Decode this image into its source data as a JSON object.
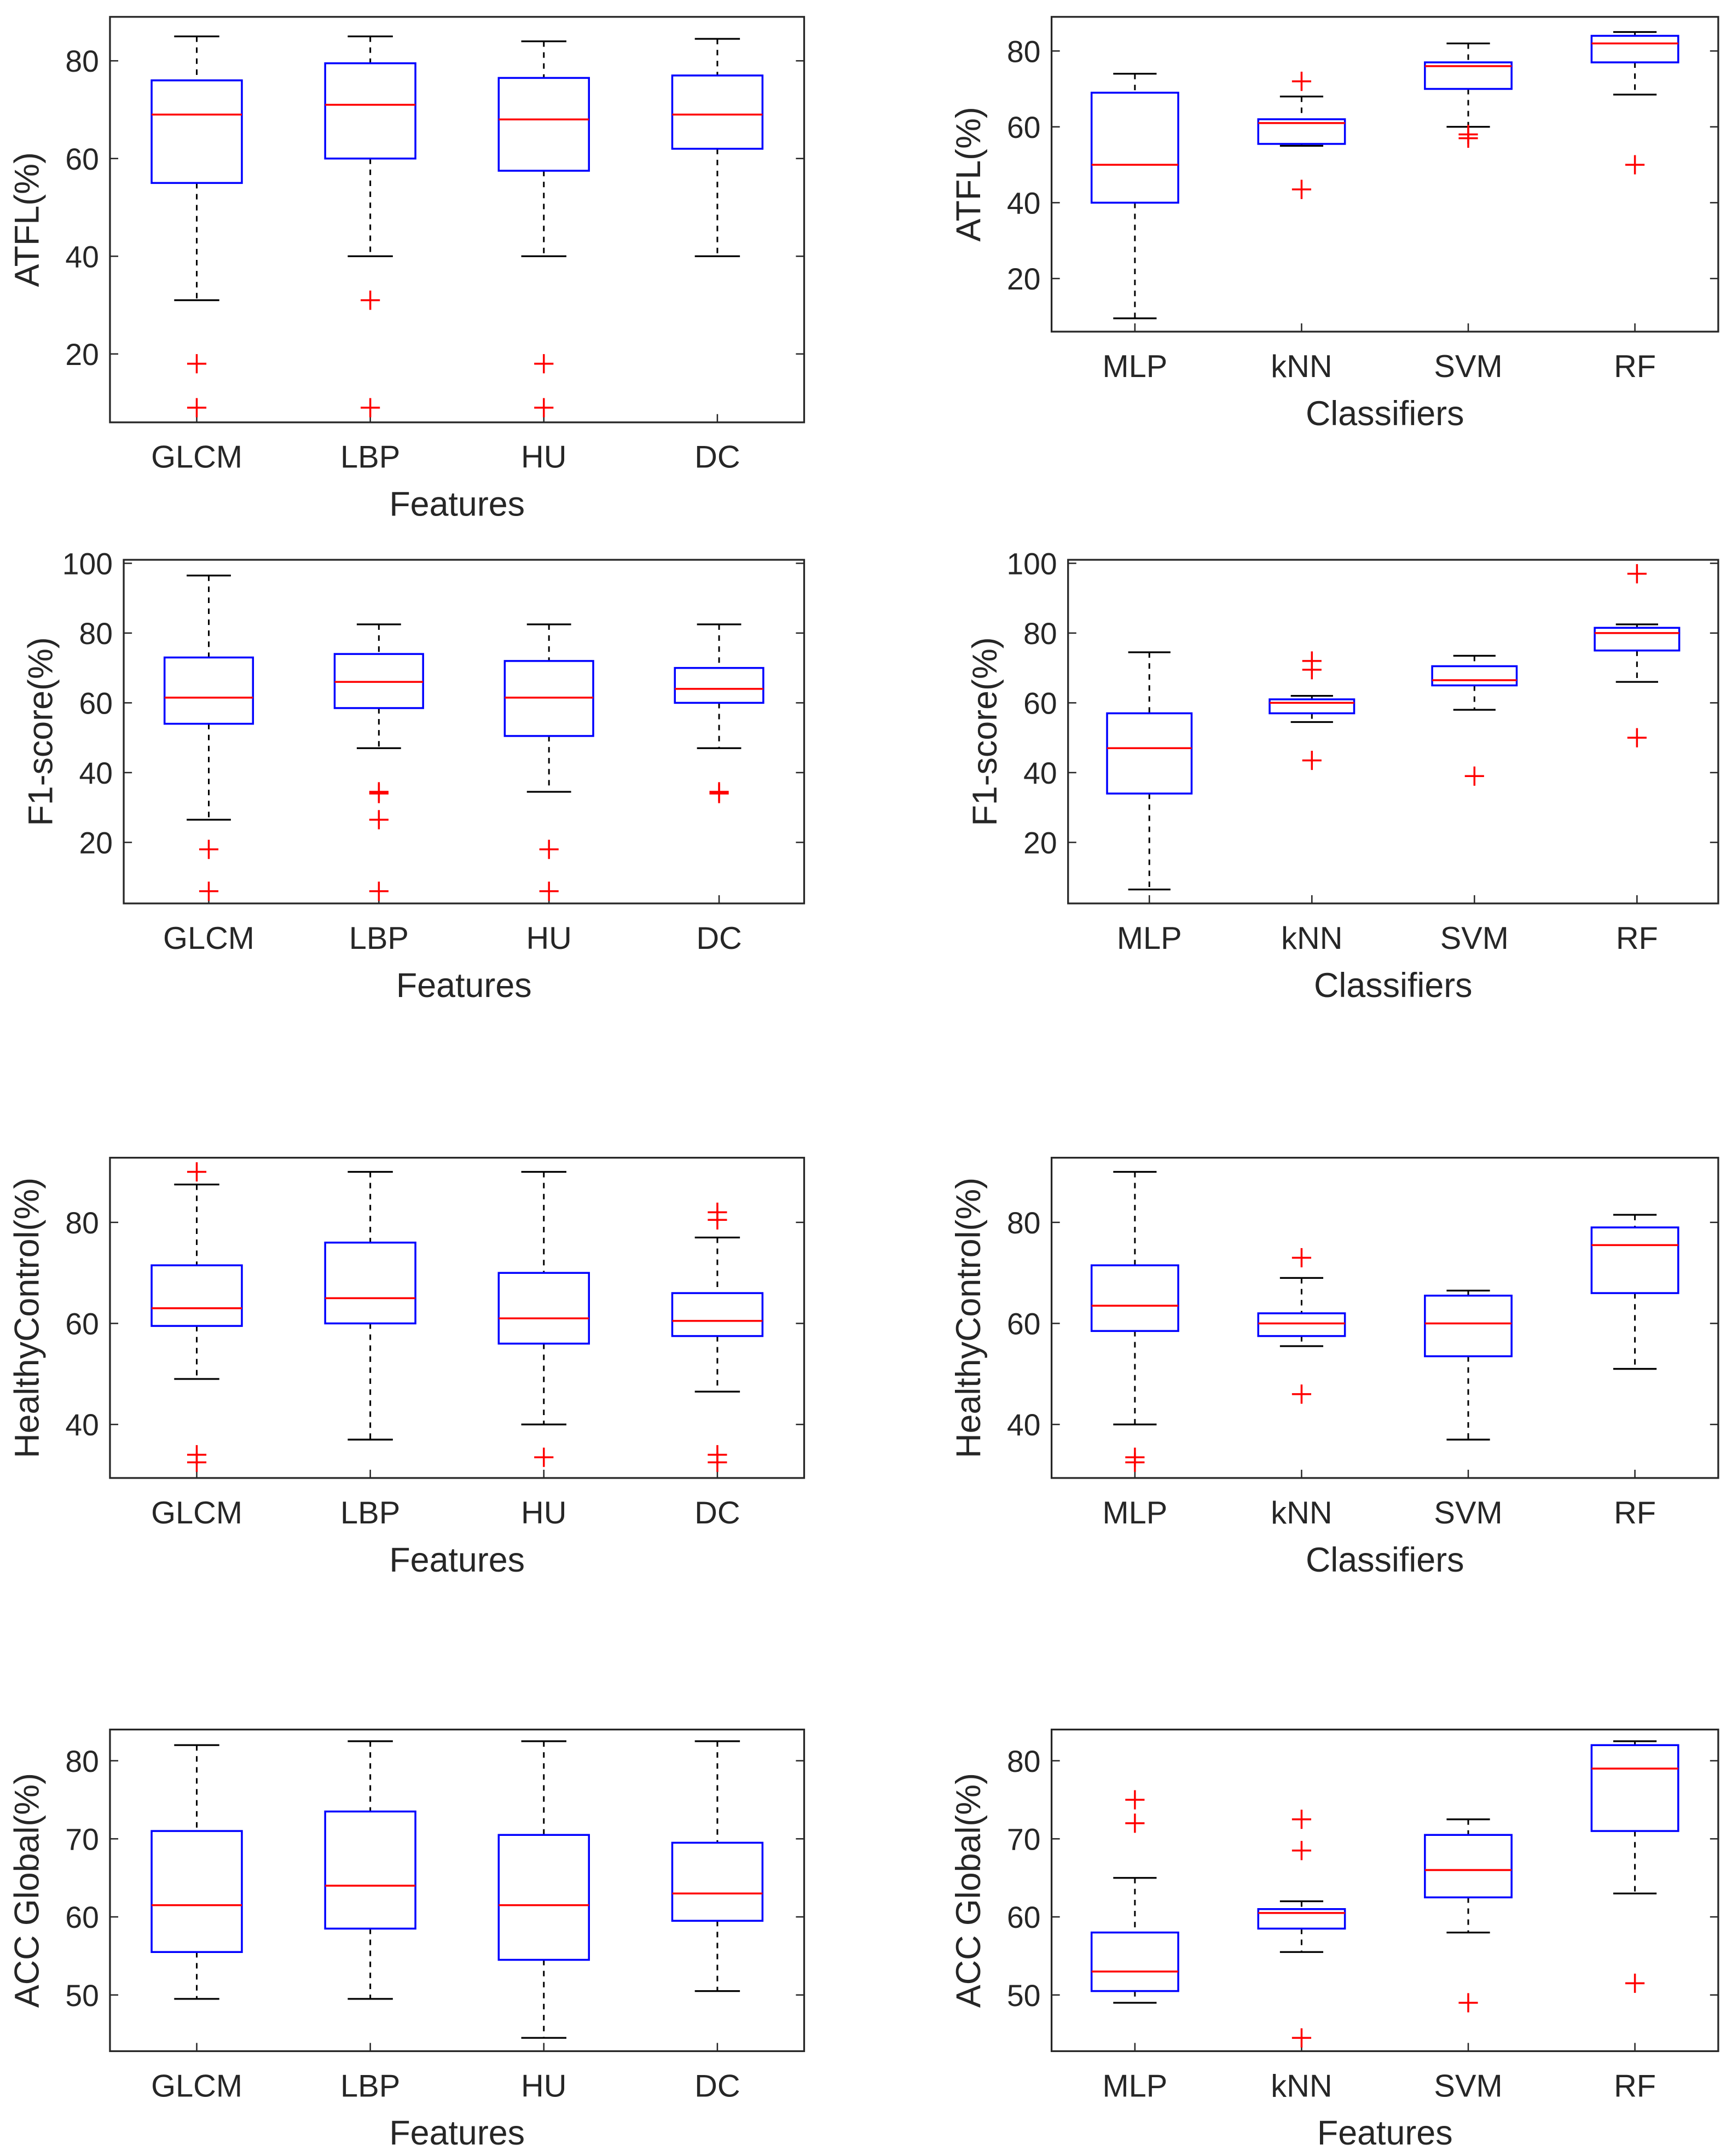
{
  "chart_data": [
    {
      "type": "box",
      "title": "",
      "xlabel": "Features",
      "ylabel": "ATFL(%)",
      "ylim": [
        6,
        89
      ],
      "yticks": [
        20,
        40,
        60,
        80
      ],
      "categories": [
        "GLCM",
        "LBP",
        "HU",
        "DC"
      ],
      "boxes": [
        {
          "whisker_high": 85,
          "q3": 76,
          "median": 69,
          "q1": 55,
          "whisker_low": 31,
          "outliers": [
            18,
            9
          ]
        },
        {
          "whisker_high": 85,
          "q3": 79.5,
          "median": 71,
          "q1": 60,
          "whisker_low": 40,
          "outliers": [
            31,
            9
          ]
        },
        {
          "whisker_high": 84,
          "q3": 76.5,
          "median": 68,
          "q1": 57.5,
          "whisker_low": 40,
          "outliers": [
            18,
            9
          ]
        },
        {
          "whisker_high": 84.5,
          "q3": 77,
          "median": 69,
          "q1": 62,
          "whisker_low": 40,
          "outliers": []
        }
      ]
    },
    {
      "type": "box",
      "title": "",
      "xlabel": "Classifiers",
      "ylabel": "ATFL(%)",
      "ylim": [
        6,
        89
      ],
      "yticks": [
        20,
        40,
        60,
        80
      ],
      "categories": [
        "MLP",
        "kNN",
        "SVM",
        "RF"
      ],
      "boxes": [
        {
          "whisker_high": 74,
          "q3": 69,
          "median": 50,
          "q1": 40,
          "whisker_low": 9.5,
          "outliers": []
        },
        {
          "whisker_high": 68,
          "q3": 62,
          "median": 61,
          "q1": 55.5,
          "whisker_low": 55,
          "outliers": [
            72,
            43.5
          ]
        },
        {
          "whisker_high": 82,
          "q3": 77,
          "median": 76,
          "q1": 70,
          "whisker_low": 60,
          "outliers": [
            58,
            57
          ]
        },
        {
          "whisker_high": 85,
          "q3": 84,
          "median": 82,
          "q1": 77,
          "whisker_low": 68.5,
          "outliers": [
            50
          ]
        }
      ]
    },
    {
      "type": "box",
      "title": "",
      "xlabel": "Features",
      "ylabel": "F1-score(%)",
      "ylim": [
        2.5,
        101
      ],
      "yticks": [
        20,
        40,
        60,
        80,
        100
      ],
      "categories": [
        "GLCM",
        "LBP",
        "HU",
        "DC"
      ],
      "boxes": [
        {
          "whisker_high": 96.5,
          "q3": 73,
          "median": 61.5,
          "q1": 54,
          "whisker_low": 26.5,
          "outliers": [
            18,
            6
          ]
        },
        {
          "whisker_high": 82.5,
          "q3": 74,
          "median": 66,
          "q1": 58.5,
          "whisker_low": 47,
          "outliers": [
            34.5,
            34,
            26.5,
            6
          ]
        },
        {
          "whisker_high": 82.5,
          "q3": 72,
          "median": 61.5,
          "q1": 50.5,
          "whisker_low": 34.5,
          "outliers": [
            18,
            6
          ]
        },
        {
          "whisker_high": 82.5,
          "q3": 70,
          "median": 64,
          "q1": 60,
          "whisker_low": 47,
          "outliers": [
            34.5,
            34
          ]
        }
      ]
    },
    {
      "type": "box",
      "title": "",
      "xlabel": "Classifiers",
      "ylabel": "F1-score(%)",
      "ylim": [
        2.5,
        101
      ],
      "yticks": [
        20,
        40,
        60,
        80,
        100
      ],
      "categories": [
        "MLP",
        "kNN",
        "SVM",
        "RF"
      ],
      "boxes": [
        {
          "whisker_high": 74.5,
          "q3": 57,
          "median": 47,
          "q1": 34,
          "whisker_low": 6.5,
          "outliers": []
        },
        {
          "whisker_high": 62,
          "q3": 61,
          "median": 60,
          "q1": 57,
          "whisker_low": 54.5,
          "outliers": [
            72,
            69.5,
            43.5
          ]
        },
        {
          "whisker_high": 73.5,
          "q3": 70.5,
          "median": 66.5,
          "q1": 65,
          "whisker_low": 58,
          "outliers": [
            39
          ]
        },
        {
          "whisker_high": 82.5,
          "q3": 81.5,
          "median": 80,
          "q1": 75,
          "whisker_low": 66,
          "outliers": [
            97,
            50
          ]
        }
      ]
    },
    {
      "type": "box",
      "title": "",
      "xlabel": "Features",
      "ylabel": "HealthyControl(%)",
      "ylim": [
        29.4,
        92.8
      ],
      "yticks": [
        40,
        60,
        80
      ],
      "categories": [
        "GLCM",
        "LBP",
        "HU",
        "DC"
      ],
      "boxes": [
        {
          "whisker_high": 87.5,
          "q3": 71.5,
          "median": 63,
          "q1": 59.5,
          "whisker_low": 49,
          "outliers": [
            90,
            34,
            32.5
          ]
        },
        {
          "whisker_high": 90,
          "q3": 76,
          "median": 65,
          "q1": 60,
          "whisker_low": 37,
          "outliers": []
        },
        {
          "whisker_high": 90,
          "q3": 70,
          "median": 61,
          "q1": 56,
          "whisker_low": 40,
          "outliers": [
            33.5
          ]
        },
        {
          "whisker_high": 77,
          "q3": 66,
          "median": 60.5,
          "q1": 57.5,
          "whisker_low": 46.5,
          "outliers": [
            82,
            80.5,
            34,
            32.5
          ]
        }
      ]
    },
    {
      "type": "box",
      "title": "",
      "xlabel": "Classifiers",
      "ylabel": "HealthyControl(%)",
      "ylim": [
        29.4,
        92.8
      ],
      "yticks": [
        40,
        60,
        80
      ],
      "categories": [
        "MLP",
        "kNN",
        "SVM",
        "RF"
      ],
      "boxes": [
        {
          "whisker_high": 90,
          "q3": 71.5,
          "median": 63.5,
          "q1": 58.5,
          "whisker_low": 40,
          "outliers": [
            33.5,
            32.5
          ]
        },
        {
          "whisker_high": 69,
          "q3": 62,
          "median": 60,
          "q1": 57.5,
          "whisker_low": 55.5,
          "outliers": [
            73,
            46
          ]
        },
        {
          "whisker_high": 66.5,
          "q3": 65.5,
          "median": 60,
          "q1": 53.5,
          "whisker_low": 37,
          "outliers": []
        },
        {
          "whisker_high": 81.5,
          "q3": 79,
          "median": 75.5,
          "q1": 66,
          "whisker_low": 51,
          "outliers": []
        }
      ]
    },
    {
      "type": "box",
      "title": "",
      "xlabel": "Features",
      "ylabel": "ACC Global(%)",
      "ylim": [
        42.8,
        84
      ],
      "yticks": [
        50,
        60,
        70,
        80
      ],
      "categories": [
        "GLCM",
        "LBP",
        "HU",
        "DC"
      ],
      "boxes": [
        {
          "whisker_high": 82,
          "q3": 71,
          "median": 61.5,
          "q1": 55.5,
          "whisker_low": 49.5,
          "outliers": []
        },
        {
          "whisker_high": 82.5,
          "q3": 73.5,
          "median": 64,
          "q1": 58.5,
          "whisker_low": 49.5,
          "outliers": []
        },
        {
          "whisker_high": 82.5,
          "q3": 70.5,
          "median": 61.5,
          "q1": 54.5,
          "whisker_low": 44.5,
          "outliers": []
        },
        {
          "whisker_high": 82.5,
          "q3": 69.5,
          "median": 63,
          "q1": 59.5,
          "whisker_low": 50.5,
          "outliers": []
        }
      ]
    },
    {
      "type": "box",
      "title": "",
      "xlabel": "Features",
      "ylabel": "ACC Global(%)",
      "ylim": [
        42.8,
        84
      ],
      "yticks": [
        50,
        60,
        70,
        80
      ],
      "categories": [
        "MLP",
        "kNN",
        "SVM",
        "RF"
      ],
      "boxes": [
        {
          "whisker_high": 65,
          "q3": 58,
          "median": 53,
          "q1": 50.5,
          "whisker_low": 49,
          "outliers": [
            75,
            72
          ]
        },
        {
          "whisker_high": 62,
          "q3": 61,
          "median": 60.5,
          "q1": 58.5,
          "whisker_low": 55.5,
          "outliers": [
            72.5,
            68.5,
            44.5
          ]
        },
        {
          "whisker_high": 72.5,
          "q3": 70.5,
          "median": 66,
          "q1": 62.5,
          "whisker_low": 58,
          "outliers": [
            49
          ]
        },
        {
          "whisker_high": 82.5,
          "q3": 82,
          "median": 79,
          "q1": 71,
          "whisker_low": 63,
          "outliers": [
            51.5
          ]
        }
      ]
    }
  ],
  "colors": {
    "box": "#0000ff",
    "median": "#ff0000",
    "outlier": "#ff0000",
    "whisker": "#000000",
    "axes": "#262626"
  }
}
